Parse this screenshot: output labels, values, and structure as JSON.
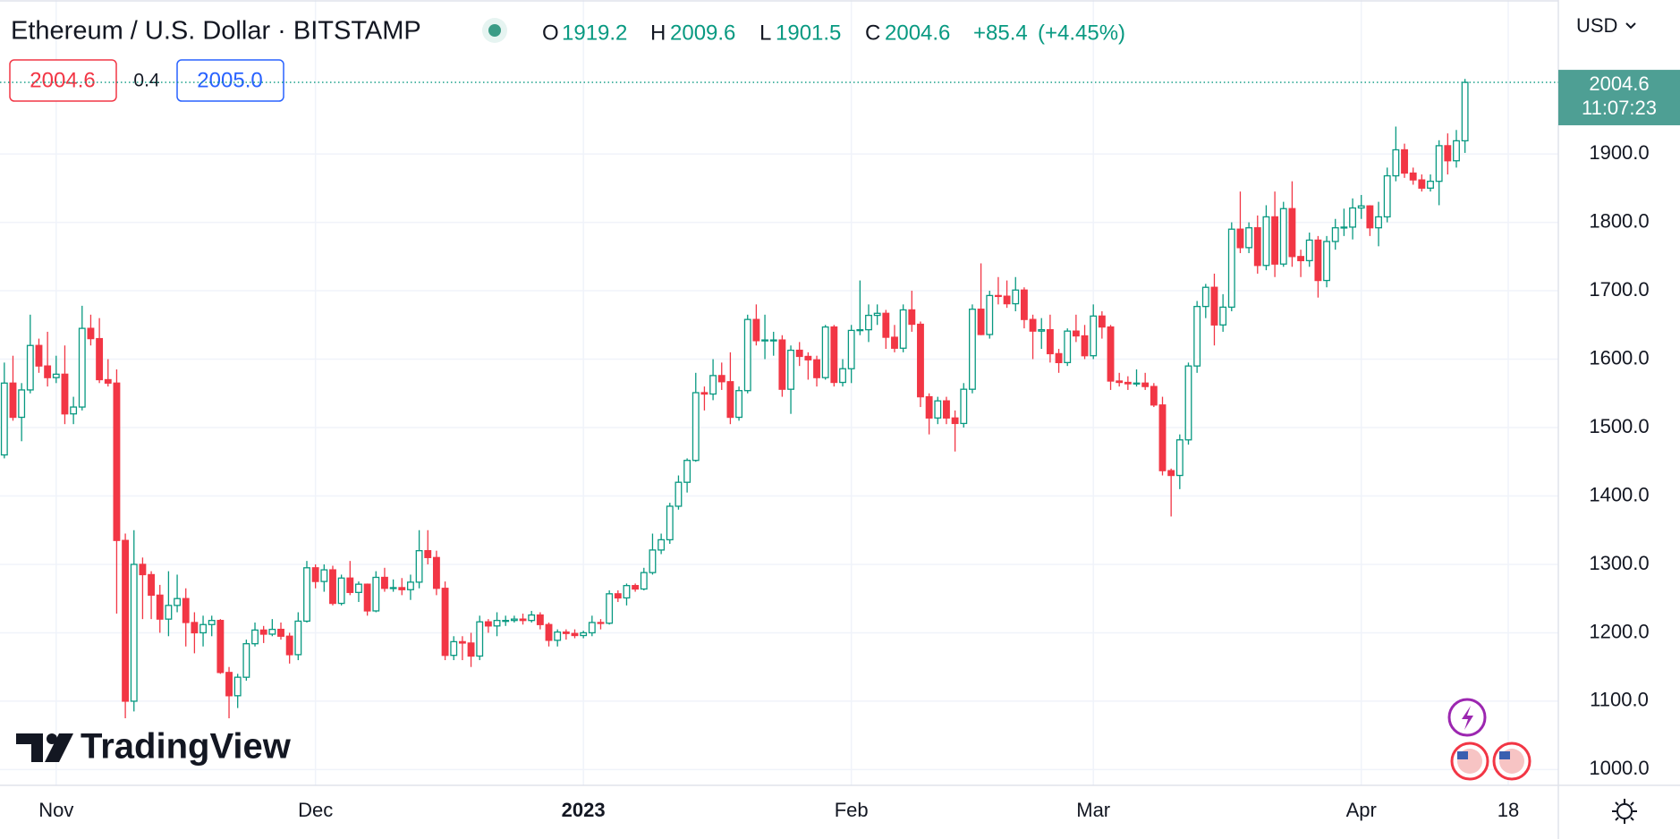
{
  "chart_data": {
    "type": "candlestick",
    "title": "Ethereum / U.S. Dollar · BITSTAMP",
    "legend": {
      "open_label": "O",
      "open": 1919.2,
      "high_label": "H",
      "high": 2009.6,
      "low_label": "L",
      "low": 1901.5,
      "close_label": "C",
      "close": 2004.6,
      "change": {
        "value": 85.4,
        "label": "+85.4"
      },
      "change_pct": {
        "value": 4.45,
        "label": "(+4.45%)"
      }
    },
    "bid": "2004.6",
    "spread": "0.4",
    "ask": "2005.0",
    "currency": "USD",
    "last_price": {
      "value": 2004.6,
      "label": "2004.6"
    },
    "countdown": "11:07:23",
    "watermark": "TradingView",
    "up_color": "#089981",
    "down_color": "#f23645",
    "xlim": [
      -0.5,
      179.8
    ],
    "xticks": [
      {
        "value": 6,
        "label": "Nov"
      },
      {
        "value": 36,
        "label": "Dec"
      },
      {
        "value": 67,
        "label": "2023"
      },
      {
        "value": 98,
        "label": "Feb"
      },
      {
        "value": 126,
        "label": "Mar"
      },
      {
        "value": 157,
        "label": "Apr"
      },
      {
        "value": 174,
        "label": "18"
      }
    ],
    "ylim": [
      977,
      2125
    ],
    "yticks": [
      {
        "value": 1000,
        "label": "1000.0"
      },
      {
        "value": 1100,
        "label": "1100.0"
      },
      {
        "value": 1200,
        "label": "1200.0"
      },
      {
        "value": 1300,
        "label": "1300.0"
      },
      {
        "value": 1400,
        "label": "1400.0"
      },
      {
        "value": 1500,
        "label": "1500.0"
      },
      {
        "value": 1600,
        "label": "1600.0"
      },
      {
        "value": 1700,
        "label": "1700.0"
      },
      {
        "value": 1800,
        "label": "1800.0"
      },
      {
        "value": 1900,
        "label": "1900.0"
      }
    ],
    "grid": true,
    "ohlc": [
      [
        1460,
        1595,
        1455,
        1565
      ],
      [
        1565,
        1605,
        1510,
        1515
      ],
      [
        1515,
        1565,
        1480,
        1555
      ],
      [
        1555,
        1665,
        1550,
        1620
      ],
      [
        1620,
        1630,
        1580,
        1590
      ],
      [
        1590,
        1640,
        1560,
        1573
      ],
      [
        1573,
        1605,
        1565,
        1578
      ],
      [
        1578,
        1620,
        1505,
        1520
      ],
      [
        1520,
        1545,
        1505,
        1530
      ],
      [
        1530,
        1678,
        1525,
        1645
      ],
      [
        1645,
        1665,
        1620,
        1630
      ],
      [
        1630,
        1660,
        1565,
        1570
      ],
      [
        1570,
        1600,
        1560,
        1565
      ],
      [
        1565,
        1585,
        1228,
        1335
      ],
      [
        1335,
        1345,
        1075,
        1100
      ],
      [
        1100,
        1350,
        1085,
        1300
      ],
      [
        1300,
        1310,
        1220,
        1285
      ],
      [
        1285,
        1290,
        1220,
        1255
      ],
      [
        1255,
        1270,
        1200,
        1220
      ],
      [
        1220,
        1290,
        1195,
        1240
      ],
      [
        1240,
        1285,
        1230,
        1250
      ],
      [
        1250,
        1265,
        1180,
        1215
      ],
      [
        1215,
        1230,
        1170,
        1200
      ],
      [
        1200,
        1225,
        1180,
        1212
      ],
      [
        1212,
        1225,
        1195,
        1218
      ],
      [
        1218,
        1220,
        1140,
        1142
      ],
      [
        1142,
        1150,
        1075,
        1108
      ],
      [
        1108,
        1140,
        1090,
        1135
      ],
      [
        1135,
        1190,
        1130,
        1184
      ],
      [
        1184,
        1215,
        1180,
        1204
      ],
      [
        1204,
        1210,
        1185,
        1198
      ],
      [
        1198,
        1220,
        1195,
        1205
      ],
      [
        1205,
        1215,
        1190,
        1195
      ],
      [
        1195,
        1200,
        1155,
        1168
      ],
      [
        1168,
        1230,
        1160,
        1217
      ],
      [
        1217,
        1305,
        1215,
        1295
      ],
      [
        1295,
        1300,
        1265,
        1275
      ],
      [
        1275,
        1300,
        1260,
        1292
      ],
      [
        1292,
        1298,
        1240,
        1243
      ],
      [
        1243,
        1285,
        1240,
        1280
      ],
      [
        1280,
        1305,
        1255,
        1259
      ],
      [
        1259,
        1275,
        1245,
        1271
      ],
      [
        1271,
        1272,
        1225,
        1232
      ],
      [
        1232,
        1290,
        1230,
        1281
      ],
      [
        1281,
        1295,
        1260,
        1265
      ],
      [
        1265,
        1278,
        1260,
        1266
      ],
      [
        1266,
        1280,
        1255,
        1263
      ],
      [
        1263,
        1285,
        1248,
        1274
      ],
      [
        1274,
        1350,
        1265,
        1320
      ],
      [
        1320,
        1350,
        1300,
        1310
      ],
      [
        1310,
        1320,
        1255,
        1265
      ],
      [
        1265,
        1275,
        1160,
        1167
      ],
      [
        1167,
        1195,
        1160,
        1187
      ],
      [
        1187,
        1195,
        1160,
        1185
      ],
      [
        1185,
        1200,
        1150,
        1166
      ],
      [
        1166,
        1225,
        1160,
        1216
      ],
      [
        1216,
        1220,
        1200,
        1210
      ],
      [
        1210,
        1230,
        1195,
        1218
      ],
      [
        1218,
        1225,
        1210,
        1218
      ],
      [
        1218,
        1225,
        1215,
        1220
      ],
      [
        1220,
        1228,
        1212,
        1218
      ],
      [
        1218,
        1232,
        1215,
        1226
      ],
      [
        1226,
        1230,
        1205,
        1212
      ],
      [
        1212,
        1215,
        1180,
        1189
      ],
      [
        1189,
        1205,
        1180,
        1201
      ],
      [
        1201,
        1205,
        1190,
        1199
      ],
      [
        1199,
        1205,
        1192,
        1196
      ],
      [
        1196,
        1203,
        1192,
        1200
      ],
      [
        1200,
        1225,
        1195,
        1215
      ],
      [
        1215,
        1220,
        1205,
        1214
      ],
      [
        1214,
        1262,
        1212,
        1257
      ],
      [
        1257,
        1262,
        1245,
        1251
      ],
      [
        1251,
        1272,
        1240,
        1269
      ],
      [
        1269,
        1272,
        1260,
        1264
      ],
      [
        1264,
        1295,
        1262,
        1288
      ],
      [
        1288,
        1345,
        1285,
        1321
      ],
      [
        1321,
        1345,
        1315,
        1336
      ],
      [
        1336,
        1390,
        1330,
        1385
      ],
      [
        1385,
        1430,
        1380,
        1420
      ],
      [
        1420,
        1455,
        1405,
        1452
      ],
      [
        1452,
        1580,
        1450,
        1551
      ],
      [
        1551,
        1560,
        1525,
        1549
      ],
      [
        1549,
        1600,
        1540,
        1576
      ],
      [
        1576,
        1595,
        1555,
        1567
      ],
      [
        1567,
        1610,
        1505,
        1515
      ],
      [
        1515,
        1560,
        1510,
        1554
      ],
      [
        1554,
        1665,
        1550,
        1658
      ],
      [
        1658,
        1680,
        1620,
        1627
      ],
      [
        1627,
        1665,
        1600,
        1628
      ],
      [
        1628,
        1640,
        1605,
        1628
      ],
      [
        1628,
        1635,
        1545,
        1556
      ],
      [
        1556,
        1620,
        1520,
        1613
      ],
      [
        1613,
        1625,
        1590,
        1604
      ],
      [
        1604,
        1610,
        1570,
        1599
      ],
      [
        1599,
        1605,
        1560,
        1573
      ],
      [
        1573,
        1650,
        1570,
        1647
      ],
      [
        1647,
        1650,
        1560,
        1566
      ],
      [
        1566,
        1600,
        1560,
        1586
      ],
      [
        1586,
        1650,
        1565,
        1642
      ],
      [
        1642,
        1715,
        1635,
        1643
      ],
      [
        1643,
        1680,
        1625,
        1664
      ],
      [
        1664,
        1680,
        1650,
        1667
      ],
      [
        1667,
        1672,
        1615,
        1632
      ],
      [
        1632,
        1650,
        1610,
        1616
      ],
      [
        1616,
        1680,
        1610,
        1672
      ],
      [
        1672,
        1700,
        1640,
        1651
      ],
      [
        1651,
        1655,
        1530,
        1545
      ],
      [
        1545,
        1550,
        1490,
        1514
      ],
      [
        1514,
        1545,
        1505,
        1539
      ],
      [
        1539,
        1545,
        1505,
        1514
      ],
      [
        1514,
        1525,
        1465,
        1506
      ],
      [
        1506,
        1565,
        1500,
        1556
      ],
      [
        1556,
        1680,
        1550,
        1673
      ],
      [
        1673,
        1740,
        1635,
        1636
      ],
      [
        1636,
        1700,
        1630,
        1693
      ],
      [
        1693,
        1720,
        1680,
        1692
      ],
      [
        1692,
        1715,
        1675,
        1681
      ],
      [
        1681,
        1720,
        1670,
        1701
      ],
      [
        1701,
        1705,
        1645,
        1658
      ],
      [
        1658,
        1665,
        1600,
        1641
      ],
      [
        1641,
        1660,
        1615,
        1643
      ],
      [
        1643,
        1665,
        1595,
        1608
      ],
      [
        1608,
        1615,
        1580,
        1595
      ],
      [
        1595,
        1645,
        1590,
        1641
      ],
      [
        1641,
        1665,
        1625,
        1634
      ],
      [
        1634,
        1650,
        1600,
        1605
      ],
      [
        1605,
        1680,
        1600,
        1663
      ],
      [
        1663,
        1670,
        1630,
        1647
      ],
      [
        1647,
        1650,
        1555,
        1568
      ],
      [
        1568,
        1580,
        1560,
        1566
      ],
      [
        1566,
        1575,
        1555,
        1564
      ],
      [
        1564,
        1585,
        1560,
        1565
      ],
      [
        1565,
        1580,
        1555,
        1560
      ],
      [
        1560,
        1565,
        1530,
        1533
      ],
      [
        1533,
        1545,
        1430,
        1437
      ],
      [
        1437,
        1440,
        1370,
        1430
      ],
      [
        1430,
        1490,
        1410,
        1482
      ],
      [
        1482,
        1595,
        1475,
        1590
      ],
      [
        1590,
        1685,
        1580,
        1677
      ],
      [
        1677,
        1710,
        1660,
        1705
      ],
      [
        1705,
        1725,
        1620,
        1650
      ],
      [
        1650,
        1695,
        1640,
        1676
      ],
      [
        1676,
        1800,
        1670,
        1790
      ],
      [
        1790,
        1845,
        1755,
        1763
      ],
      [
        1763,
        1800,
        1755,
        1792
      ],
      [
        1792,
        1810,
        1725,
        1737
      ],
      [
        1737,
        1825,
        1730,
        1808
      ],
      [
        1808,
        1845,
        1720,
        1739
      ],
      [
        1739,
        1830,
        1735,
        1820
      ],
      [
        1820,
        1860,
        1735,
        1750
      ],
      [
        1750,
        1760,
        1720,
        1744
      ],
      [
        1744,
        1785,
        1735,
        1774
      ],
      [
        1774,
        1780,
        1690,
        1715
      ],
      [
        1715,
        1780,
        1705,
        1772
      ],
      [
        1772,
        1805,
        1760,
        1792
      ],
      [
        1792,
        1820,
        1780,
        1793
      ],
      [
        1793,
        1835,
        1775,
        1821
      ],
      [
        1821,
        1840,
        1805,
        1824
      ],
      [
        1824,
        1825,
        1780,
        1792
      ],
      [
        1792,
        1830,
        1765,
        1808
      ],
      [
        1808,
        1880,
        1800,
        1868
      ],
      [
        1868,
        1940,
        1860,
        1906
      ],
      [
        1906,
        1915,
        1865,
        1872
      ],
      [
        1872,
        1880,
        1855,
        1862
      ],
      [
        1862,
        1870,
        1845,
        1850
      ],
      [
        1850,
        1870,
        1845,
        1860
      ],
      [
        1860,
        1920,
        1825,
        1912
      ],
      [
        1912,
        1930,
        1870,
        1890
      ],
      [
        1890,
        1935,
        1880,
        1919.2
      ],
      [
        1919.2,
        2009.6,
        1901.5,
        2004.6
      ]
    ]
  }
}
